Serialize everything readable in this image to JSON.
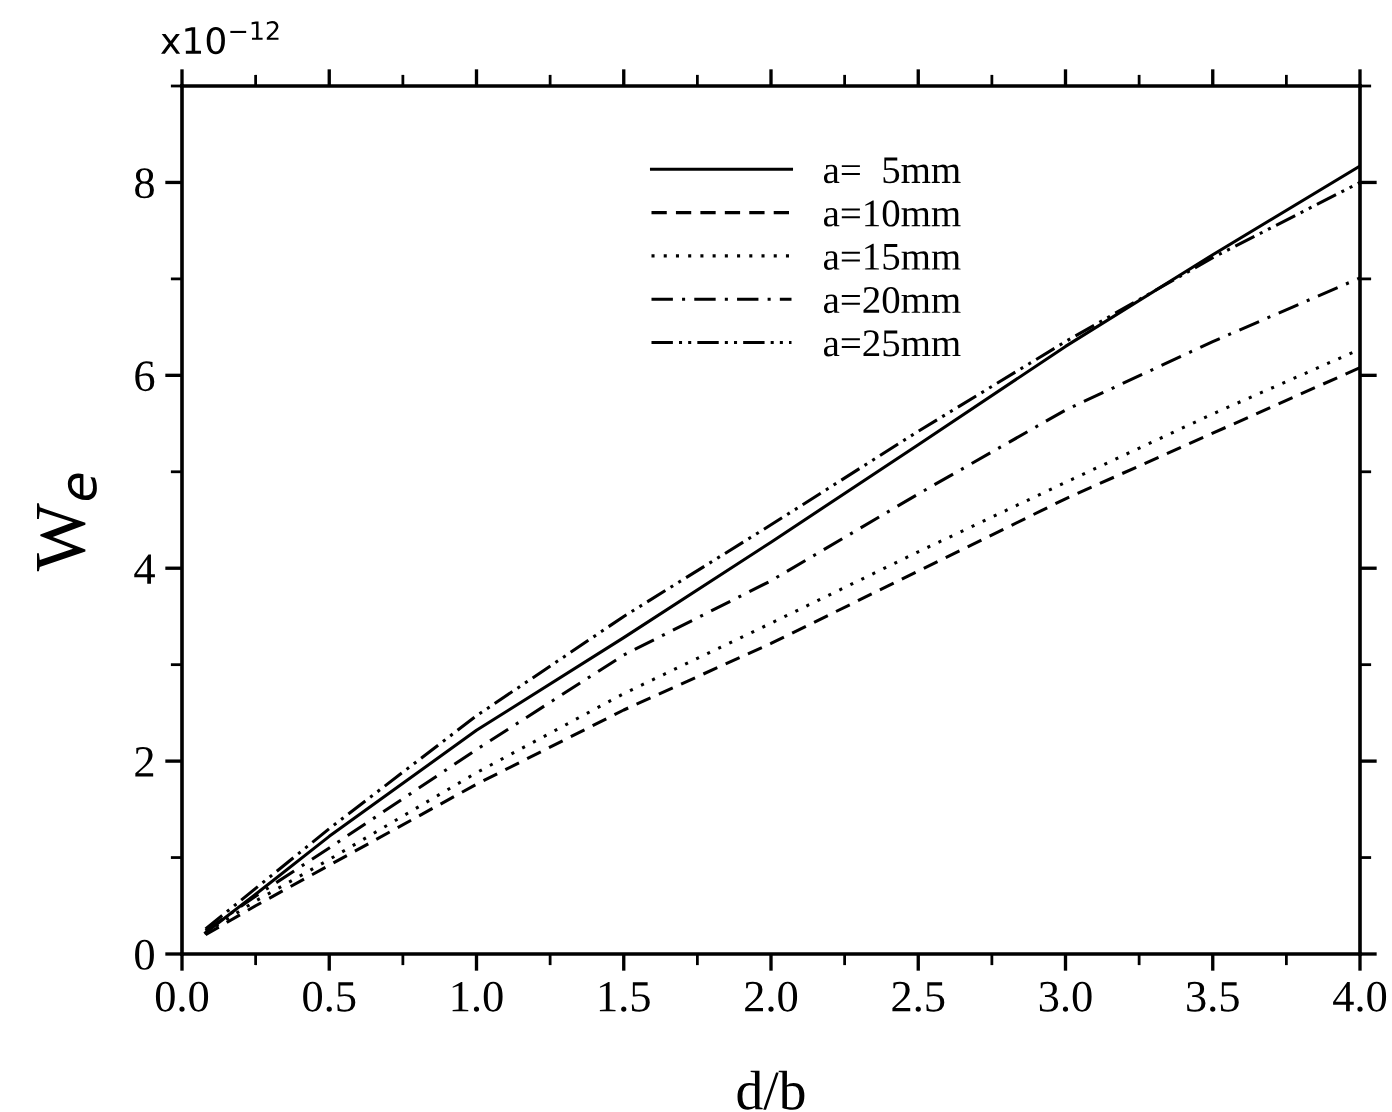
{
  "chart_data": {
    "type": "line",
    "xlabel": "d/b",
    "ylabel": "W$_{e}$",
    "annotations": [
      "x10$^{−12}$"
    ],
    "x": [
      0.08,
      0.25,
      0.5,
      1.0,
      1.5,
      2.0,
      2.5,
      3.0,
      3.5,
      4.0
    ],
    "xlim": [
      0,
      4
    ],
    "xticks": [
      {
        "value": 0,
        "label": "0.0"
      },
      0.5,
      {
        "value": 1,
        "label": "1.0"
      },
      1.5,
      {
        "value": 2,
        "label": "2.0"
      },
      2.5,
      {
        "value": 3,
        "label": "3.0"
      },
      3.5,
      {
        "value": 4,
        "label": "4.0"
      }
    ],
    "ylim": [
      0,
      9
    ],
    "yticks": [
      0,
      2,
      4,
      6,
      8
    ],
    "grid": false,
    "legend": "top",
    "marker": "none",
    "series": [
      {
        "name": "a=  5mm",
        "color": "#000000",
        "line_style": "solid",
        "values": [
          0.22,
          0.62,
          1.22,
          2.32,
          3.28,
          4.27,
          5.28,
          6.3,
          7.25,
          8.17
        ]
      },
      {
        "name": "a=10mm",
        "color": "#000000",
        "line_style": "dashed",
        "values": [
          0.2,
          0.5,
          0.92,
          1.76,
          2.53,
          3.22,
          3.97,
          4.72,
          5.4,
          6.08
        ]
      },
      {
        "name": "a=15mm",
        "color": "#000000",
        "line_style": "dotted",
        "values": [
          0.22,
          0.55,
          0.98,
          1.88,
          2.7,
          3.43,
          4.17,
          4.89,
          5.6,
          6.27
        ]
      },
      {
        "name": "a=20mm",
        "color": "#000000",
        "line_style": "dashdot",
        "values": [
          0.24,
          0.6,
          1.1,
          2.12,
          3.1,
          3.87,
          4.77,
          5.64,
          6.35,
          7.01
        ]
      },
      {
        "name": "a=25mm",
        "color": "#000000",
        "line_style": "dashdotdot",
        "values": [
          0.26,
          0.68,
          1.3,
          2.47,
          3.5,
          4.45,
          5.42,
          6.35,
          7.22,
          8.0
        ]
      }
    ]
  }
}
